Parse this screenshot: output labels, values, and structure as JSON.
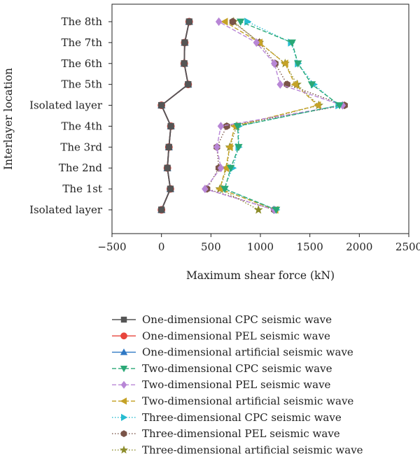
{
  "chart_data": {
    "type": "line",
    "title": "",
    "xlabel": "Maximum shear force (kN)",
    "ylabel": "Interlayer location",
    "xlim": [
      -500,
      2500
    ],
    "xticks": [
      "−500",
      "0",
      "500",
      "1000",
      "1500",
      "2000",
      "2500"
    ],
    "xtick_values": [
      -500,
      0,
      500,
      1000,
      1500,
      2000,
      2500
    ],
    "categories": [
      "Isolated layer",
      "The 1st",
      "The 2nd",
      "The 3rd",
      "The 4th",
      "Isolated layer",
      "The 5th",
      "The 6th",
      "The 7th",
      "The 8th"
    ],
    "grid": false,
    "legend_position": "bottom",
    "series": [
      {
        "name": "One-dimensional CPC seismic wave",
        "color": "#555555",
        "marker": "square",
        "dash": "solid",
        "values": [
          0,
          90,
          60,
          75,
          95,
          0,
          270,
          230,
          235,
          280
        ]
      },
      {
        "name": "One-dimensional PEL seismic wave",
        "color": "#e8453c",
        "marker": "circle",
        "dash": "solid",
        "values": [
          0,
          90,
          60,
          75,
          95,
          0,
          270,
          230,
          235,
          280
        ]
      },
      {
        "name": "One-dimensional artificial seismic wave",
        "color": "#2f78c4",
        "marker": "triangle-up",
        "dash": "solid",
        "values": [
          0,
          90,
          60,
          75,
          95,
          0,
          270,
          230,
          235,
          280
        ]
      },
      {
        "name": "Two-dimensional CPC seismic wave",
        "color": "#2aa876",
        "marker": "triangle-down",
        "dash": "dashed",
        "values": [
          1160,
          640,
          700,
          780,
          770,
          1800,
          1520,
          1380,
          1320,
          800
        ]
      },
      {
        "name": "Two-dimensional PEL seismic wave",
        "color": "#b886d6",
        "marker": "diamond",
        "dash": "dashed",
        "values": [
          1140,
          440,
          600,
          560,
          600,
          1830,
          1200,
          1140,
          960,
          580
        ]
      },
      {
        "name": "Two-dimensional artificial seismic wave",
        "color": "#c5a227",
        "marker": "triangle-left",
        "dash": "dashed",
        "values": [
          1150,
          590,
          650,
          690,
          740,
          1580,
          1350,
          1250,
          990,
          640
        ]
      },
      {
        "name": "Three-dimensional CPC seismic wave",
        "color": "#27bcd1",
        "marker": "triangle-right",
        "dash": "dotted",
        "values": [
          1160,
          630,
          720,
          780,
          780,
          1790,
          1540,
          1380,
          1310,
          870
        ]
      },
      {
        "name": "Three-dimensional PEL seismic wave",
        "color": "#7a5448",
        "marker": "hexagon",
        "dash": "dotted",
        "values": [
          1140,
          460,
          580,
          560,
          660,
          1850,
          1270,
          1150,
          990,
          720
        ]
      },
      {
        "name": "Three-dimensional artificial seismic wave",
        "color": "#8c8c2a",
        "marker": "star",
        "dash": "dotted",
        "values": [
          980,
          590,
          660,
          690,
          760,
          1590,
          1370,
          1250,
          990,
          730
        ]
      }
    ]
  }
}
